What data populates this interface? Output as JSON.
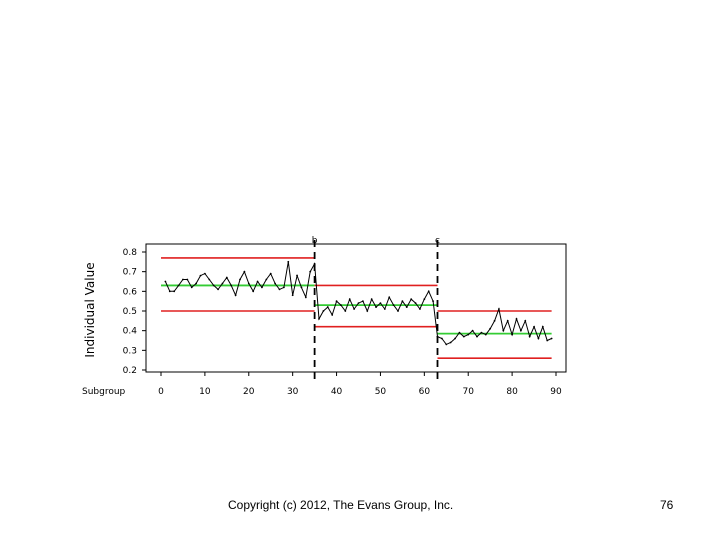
{
  "chart_data": {
    "type": "line",
    "title": "",
    "ylabel": "Individual Value",
    "xlabel": "Subgroup",
    "xlim": [
      -5,
      91
    ],
    "ylim": [
      0.2,
      0.84
    ],
    "x_ticks": [
      0,
      10,
      20,
      30,
      40,
      50,
      60,
      70,
      80,
      90
    ],
    "y_ticks": [
      0.2,
      0.3,
      0.4,
      0.5,
      0.6,
      0.7,
      0.8
    ],
    "y_tick_labels": [
      "0.2",
      "0.3",
      "0.4",
      "0.5",
      "0.6",
      "0.7",
      "0.8"
    ],
    "stage_labels": [
      {
        "x": 35,
        "text": "b"
      },
      {
        "x": 63,
        "text": "c"
      }
    ],
    "stages": [
      {
        "x_start": 0,
        "x_end": 35,
        "center": 0.63,
        "ucl": 0.77,
        "lcl": 0.5
      },
      {
        "x_start": 35,
        "x_end": 63,
        "center": 0.53,
        "ucl": 0.63,
        "lcl": 0.42
      },
      {
        "x_start": 63,
        "x_end": 89,
        "center": 0.385,
        "ucl": 0.5,
        "lcl": 0.26
      }
    ],
    "series": [
      {
        "values": [
          [
            1,
            0.65
          ],
          [
            2,
            0.6
          ],
          [
            3,
            0.6
          ],
          [
            4,
            0.63
          ],
          [
            5,
            0.66
          ],
          [
            6,
            0.66
          ],
          [
            7,
            0.62
          ],
          [
            8,
            0.64
          ],
          [
            9,
            0.68
          ],
          [
            10,
            0.69
          ],
          [
            11,
            0.66
          ],
          [
            12,
            0.63
          ],
          [
            13,
            0.61
          ],
          [
            14,
            0.64
          ],
          [
            15,
            0.67
          ],
          [
            16,
            0.63
          ],
          [
            17,
            0.58
          ],
          [
            18,
            0.66
          ],
          [
            19,
            0.7
          ],
          [
            20,
            0.64
          ],
          [
            21,
            0.6
          ],
          [
            22,
            0.65
          ],
          [
            23,
            0.62
          ],
          [
            24,
            0.66
          ],
          [
            25,
            0.69
          ],
          [
            26,
            0.64
          ],
          [
            27,
            0.61
          ],
          [
            28,
            0.62
          ],
          [
            29,
            0.75
          ],
          [
            30,
            0.58
          ],
          [
            31,
            0.68
          ],
          [
            32,
            0.62
          ],
          [
            33,
            0.57
          ],
          [
            34,
            0.7
          ],
          [
            35,
            0.74
          ],
          [
            36,
            0.46
          ],
          [
            37,
            0.5
          ],
          [
            38,
            0.52
          ],
          [
            39,
            0.48
          ],
          [
            40,
            0.55
          ],
          [
            41,
            0.53
          ],
          [
            42,
            0.5
          ],
          [
            43,
            0.56
          ],
          [
            44,
            0.51
          ],
          [
            45,
            0.54
          ],
          [
            46,
            0.55
          ],
          [
            47,
            0.5
          ],
          [
            48,
            0.56
          ],
          [
            49,
            0.52
          ],
          [
            50,
            0.54
          ],
          [
            51,
            0.51
          ],
          [
            52,
            0.57
          ],
          [
            53,
            0.53
          ],
          [
            54,
            0.5
          ],
          [
            55,
            0.55
          ],
          [
            56,
            0.52
          ],
          [
            57,
            0.56
          ],
          [
            58,
            0.54
          ],
          [
            59,
            0.51
          ],
          [
            60,
            0.56
          ],
          [
            61,
            0.6
          ],
          [
            62,
            0.55
          ],
          [
            63,
            0.37
          ],
          [
            64,
            0.36
          ],
          [
            65,
            0.33
          ],
          [
            66,
            0.34
          ],
          [
            67,
            0.36
          ],
          [
            68,
            0.39
          ],
          [
            69,
            0.37
          ],
          [
            70,
            0.38
          ],
          [
            71,
            0.4
          ],
          [
            72,
            0.37
          ],
          [
            73,
            0.39
          ],
          [
            74,
            0.38
          ],
          [
            75,
            0.41
          ],
          [
            76,
            0.45
          ],
          [
            77,
            0.51
          ],
          [
            78,
            0.4
          ],
          [
            79,
            0.45
          ],
          [
            80,
            0.38
          ],
          [
            81,
            0.46
          ],
          [
            82,
            0.4
          ],
          [
            83,
            0.45
          ],
          [
            84,
            0.37
          ],
          [
            85,
            0.42
          ],
          [
            86,
            0.36
          ],
          [
            87,
            0.42
          ],
          [
            88,
            0.35
          ],
          [
            89,
            0.36
          ]
        ]
      }
    ]
  },
  "footer": {
    "copyright": "Copyright (c) 2012, The Evans Group, Inc.",
    "page_number": "76"
  }
}
